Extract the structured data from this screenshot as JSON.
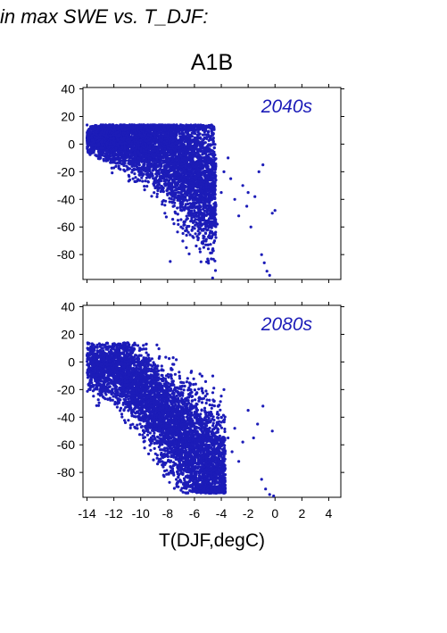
{
  "header": {
    "title": "in max SWE vs. T_DJF:",
    "scenario": "A1B"
  },
  "chart_data": [
    {
      "type": "scatter",
      "annotation": "2040s",
      "xlabel": "",
      "ylabel": "",
      "xlim": [
        -14.3,
        4.9
      ],
      "ylim": [
        -98,
        41
      ],
      "xticks": [],
      "yticks": [
        40,
        20,
        0,
        -20,
        -40,
        -60,
        -80
      ],
      "color": "#1c1cb8",
      "grid": false,
      "points": [
        [
          -14.0,
          5
        ],
        [
          -13.6,
          3
        ],
        [
          -13.2,
          2
        ],
        [
          -12.8,
          7
        ],
        [
          -12.5,
          9
        ],
        [
          -12.0,
          4
        ],
        [
          -11.7,
          0
        ],
        [
          -11.5,
          8
        ],
        [
          -11.0,
          11
        ],
        [
          -10.8,
          2
        ],
        [
          -10.4,
          -4
        ],
        [
          -10.1,
          14
        ],
        [
          -10.0,
          6
        ],
        [
          -9.8,
          -2
        ],
        [
          -9.5,
          10
        ],
        [
          -9.2,
          -8
        ],
        [
          -9.0,
          3
        ],
        [
          -8.8,
          12
        ],
        [
          -8.5,
          -12
        ],
        [
          -8.3,
          -5
        ],
        [
          -8.0,
          6
        ],
        [
          -7.8,
          -18
        ],
        [
          -7.6,
          -10
        ],
        [
          -7.3,
          2
        ],
        [
          -7.0,
          -25
        ],
        [
          -6.8,
          -14
        ],
        [
          -6.5,
          -35
        ],
        [
          -6.3,
          -22
        ],
        [
          -6.0,
          -45
        ],
        [
          -5.8,
          -30
        ],
        [
          -5.5,
          -55
        ],
        [
          -5.3,
          -40
        ],
        [
          -5.0,
          -62
        ],
        [
          -4.8,
          -48
        ],
        [
          -4.5,
          -70
        ],
        [
          -4.3,
          -58
        ],
        [
          -4.0,
          -35
        ],
        [
          -3.8,
          -20
        ],
        [
          -3.5,
          -10
        ],
        [
          -3.3,
          -25
        ],
        [
          -3.0,
          -40
        ],
        [
          -2.7,
          -52
        ],
        [
          -2.4,
          -30
        ],
        [
          -2.1,
          -45
        ],
        [
          -1.8,
          -60
        ],
        [
          -1.5,
          -38
        ],
        [
          -1.2,
          -20
        ],
        [
          -1.0,
          -80
        ],
        [
          -0.8,
          -86
        ],
        [
          -0.6,
          -92
        ],
        [
          -0.4,
          -95
        ],
        [
          -0.2,
          -50
        ],
        [
          0.0,
          -48
        ],
        [
          -0.9,
          -15
        ],
        [
          -2.0,
          -35
        ],
        [
          -7.0,
          -60
        ],
        [
          -7.8,
          -85
        ],
        [
          -6.6,
          -75
        ],
        [
          -8.2,
          -50
        ],
        [
          -9.0,
          -30
        ]
      ]
    },
    {
      "type": "scatter",
      "annotation": "2080s",
      "xlabel": "T(DJF,degC)",
      "ylabel": "",
      "xlim": [
        -14.3,
        4.9
      ],
      "ylim": [
        -98,
        41
      ],
      "xticks": [
        -14,
        -12,
        -10,
        -8,
        -6,
        -4,
        -2,
        0,
        2,
        4
      ],
      "yticks": [
        40,
        20,
        0,
        -20,
        -40,
        -60,
        -80
      ],
      "color": "#1c1cb8",
      "grid": false,
      "points": [
        [
          -14.0,
          5
        ],
        [
          -13.7,
          3
        ],
        [
          -13.4,
          -5
        ],
        [
          -13.0,
          -12
        ],
        [
          -12.6,
          -18
        ],
        [
          -12.3,
          -8
        ],
        [
          -12.0,
          2
        ],
        [
          -11.6,
          8
        ],
        [
          -11.2,
          -2
        ],
        [
          -11.0,
          14
        ],
        [
          -10.7,
          -10
        ],
        [
          -10.4,
          5
        ],
        [
          -10.1,
          -20
        ],
        [
          -9.8,
          12
        ],
        [
          -9.5,
          -15
        ],
        [
          -9.2,
          -32
        ],
        [
          -9.0,
          -8
        ],
        [
          -8.7,
          -45
        ],
        [
          -8.5,
          -25
        ],
        [
          -8.2,
          -55
        ],
        [
          -8.0,
          -38
        ],
        [
          -7.8,
          -65
        ],
        [
          -7.5,
          -48
        ],
        [
          -7.2,
          -75
        ],
        [
          -7.0,
          -58
        ],
        [
          -6.8,
          -88
        ],
        [
          -6.5,
          -70
        ],
        [
          -6.2,
          -82
        ],
        [
          -6.0,
          -92
        ],
        [
          -5.8,
          -60
        ],
        [
          -5.5,
          -78
        ],
        [
          -5.2,
          -90
        ],
        [
          -5.0,
          -50
        ],
        [
          -4.8,
          -70
        ],
        [
          -4.5,
          -85
        ],
        [
          -4.2,
          -60
        ],
        [
          -4.0,
          -40
        ],
        [
          -3.8,
          -20
        ],
        [
          -3.5,
          -55
        ],
        [
          -3.2,
          -65
        ],
        [
          -3.0,
          -48
        ],
        [
          -2.7,
          -72
        ],
        [
          -2.4,
          -58
        ],
        [
          -2.0,
          -35
        ],
        [
          -1.6,
          -55
        ],
        [
          -1.3,
          -45
        ],
        [
          -1.0,
          -85
        ],
        [
          -0.7,
          -92
        ],
        [
          -0.4,
          -96
        ],
        [
          -0.1,
          -97
        ],
        [
          -0.2,
          -50
        ],
        [
          -0.9,
          -32
        ],
        [
          -8.8,
          -12
        ],
        [
          -6.7,
          -30
        ],
        [
          -9.8,
          -55
        ],
        [
          -4.9,
          -95
        ]
      ]
    }
  ]
}
